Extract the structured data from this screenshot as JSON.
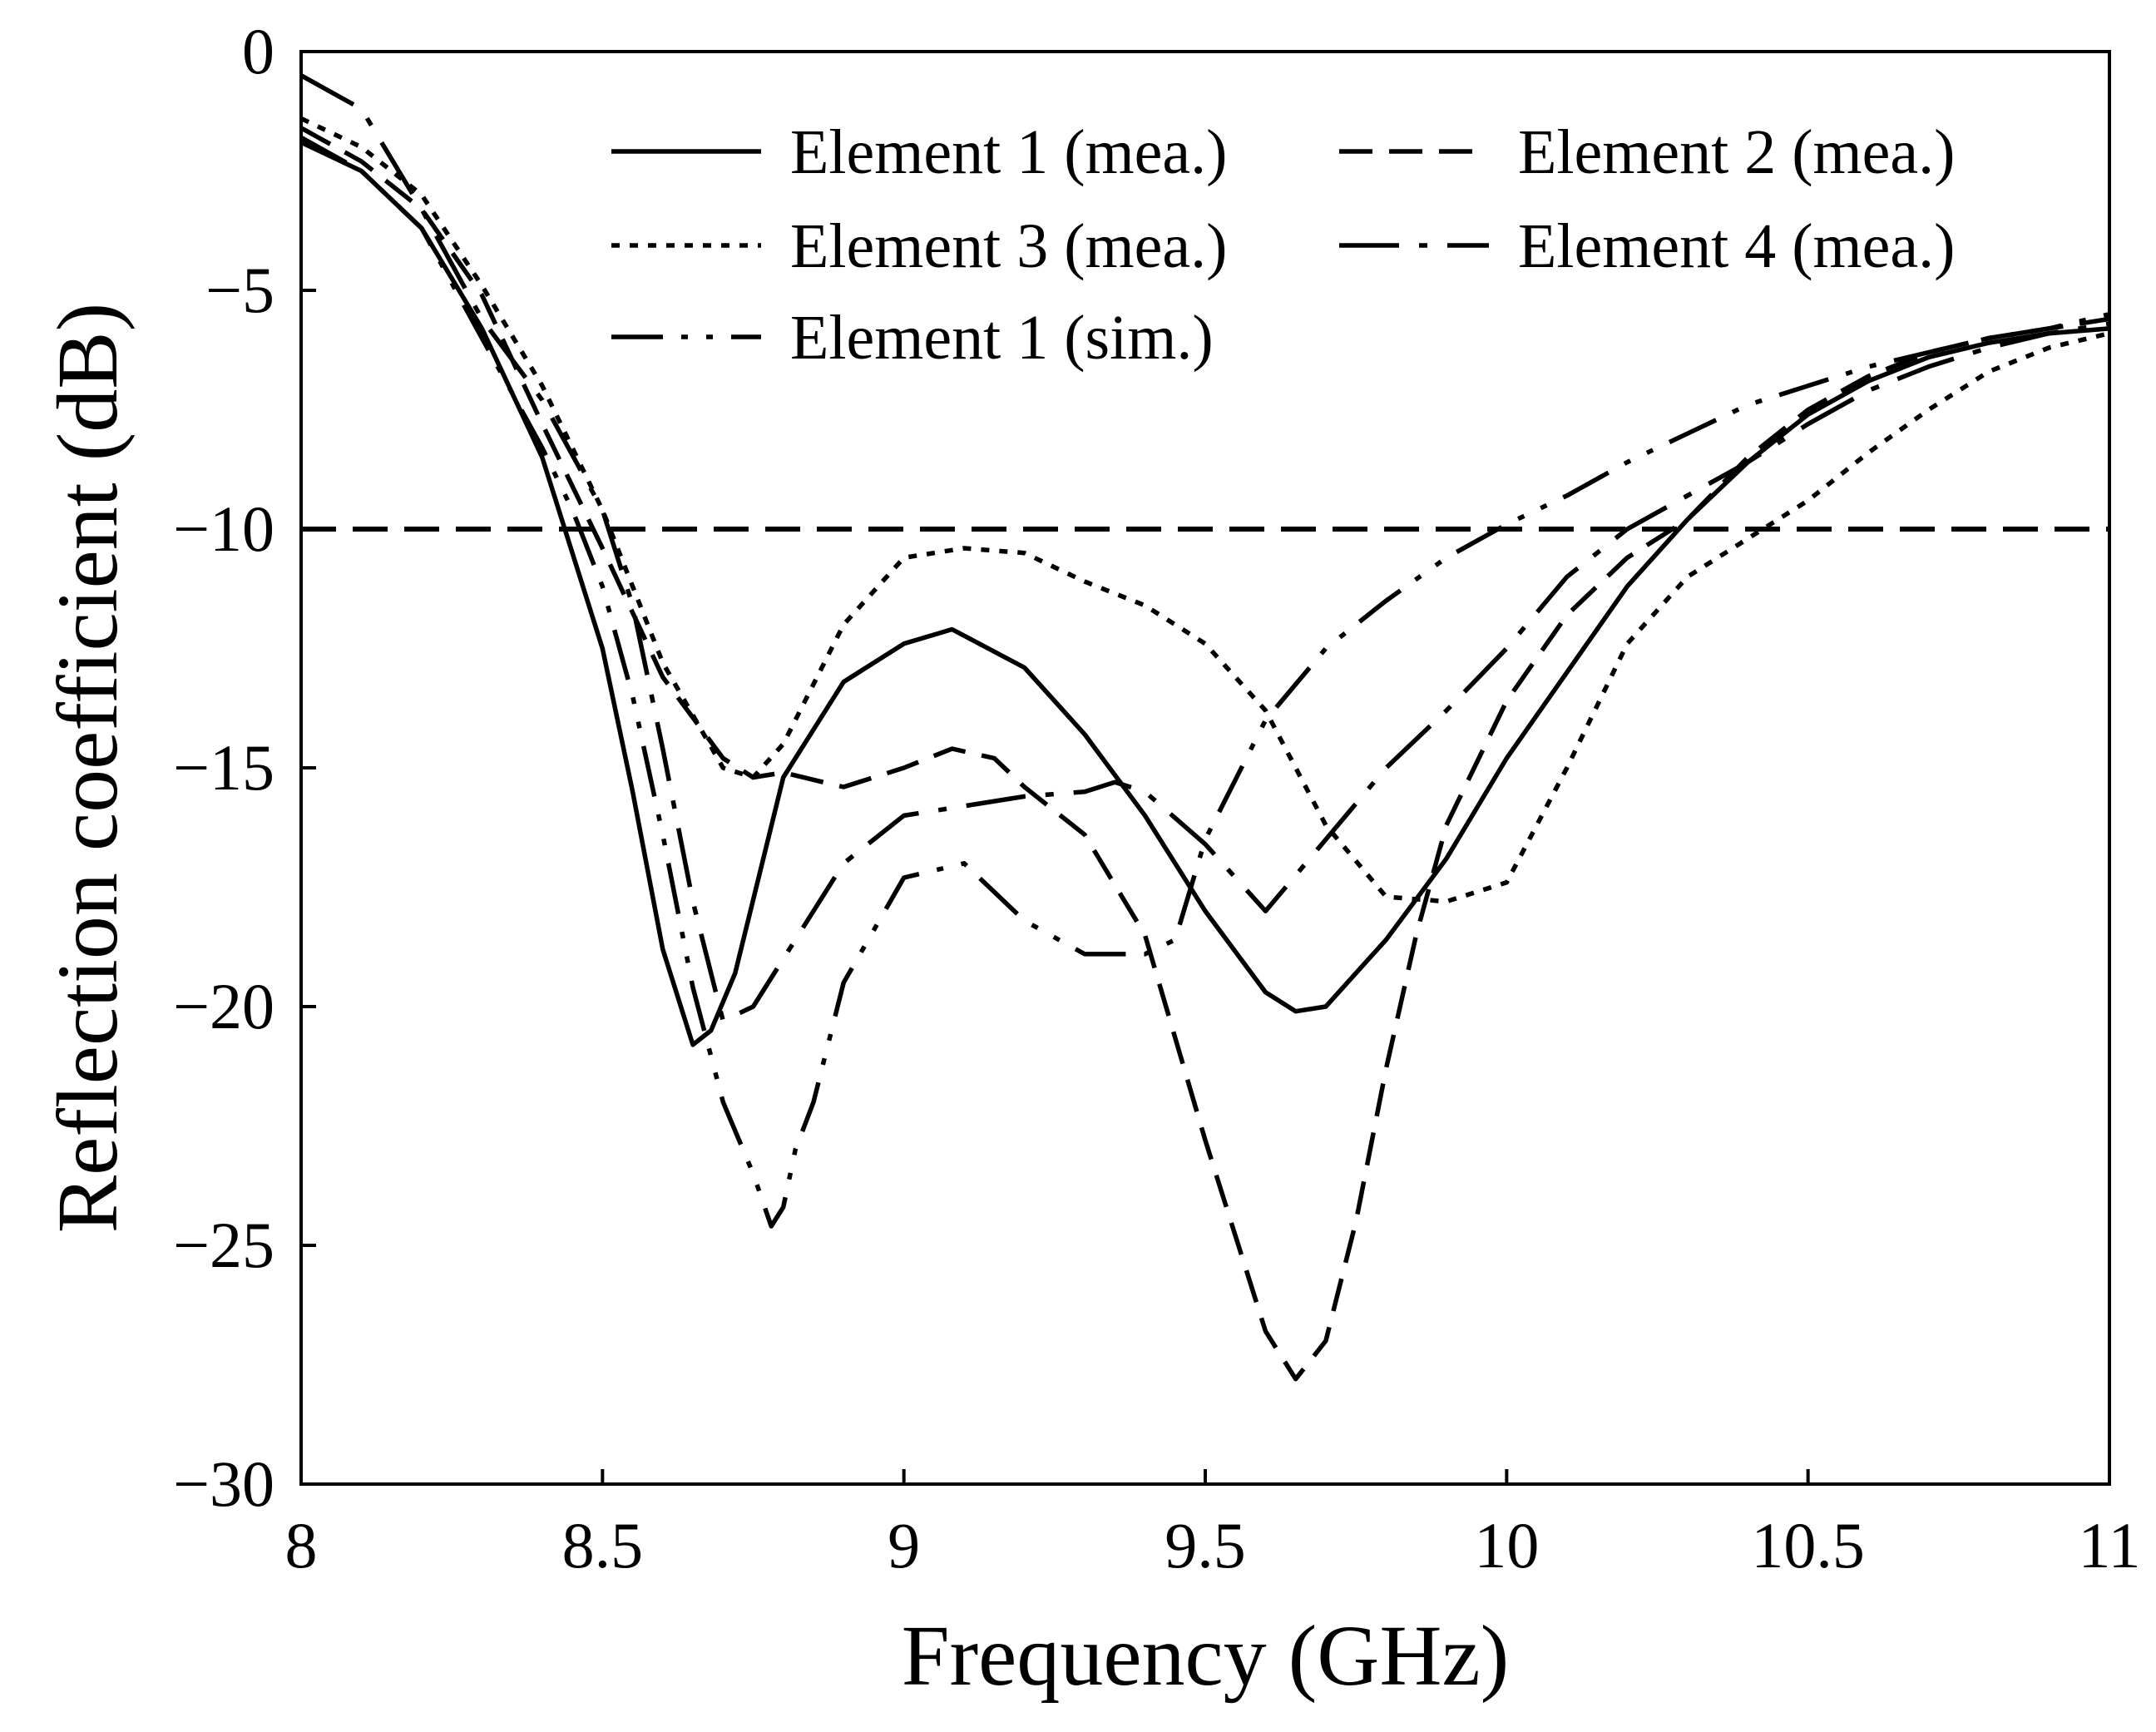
{
  "chart_data": {
    "type": "line",
    "title": "",
    "xlabel": "Frequency (GHz)",
    "ylabel": "Reflection coefficient (dB)",
    "xlim": [
      8,
      11
    ],
    "ylim": [
      -30,
      0
    ],
    "xticks": [
      8,
      8.5,
      9,
      9.5,
      10,
      10.5,
      11
    ],
    "yticks": [
      0,
      -5,
      -10,
      -15,
      -20,
      -25,
      -30
    ],
    "xtick_labels": [
      "8",
      "8.5",
      "9",
      "9.5",
      "10",
      "10.5",
      "11"
    ],
    "ytick_labels": [
      "0",
      "−5",
      "−10",
      "−15",
      "−20",
      "−25",
      "−30"
    ],
    "grid": false,
    "legend_position": "top-right",
    "reference_line": {
      "y": -10,
      "style": "dashed"
    },
    "series": [
      {
        "name": "Element 1 (mea.)",
        "style": "solid",
        "x": [
          8.0,
          8.1,
          8.2,
          8.3,
          8.4,
          8.5,
          8.55,
          8.6,
          8.65,
          8.68,
          8.72,
          8.8,
          8.9,
          9.0,
          9.08,
          9.2,
          9.3,
          9.4,
          9.5,
          9.6,
          9.65,
          9.7,
          9.8,
          9.9,
          10.0,
          10.1,
          10.2,
          10.3,
          10.4,
          10.5,
          10.6,
          10.7,
          10.8,
          10.9,
          11.0
        ],
        "y": [
          -1.9,
          -2.5,
          -3.7,
          -5.8,
          -8.5,
          -12.5,
          -15.5,
          -18.8,
          -20.8,
          -20.5,
          -19.3,
          -15.2,
          -13.2,
          -12.4,
          -12.1,
          -12.9,
          -14.3,
          -16.0,
          -18.0,
          -19.7,
          -20.1,
          -20.0,
          -18.6,
          -16.9,
          -14.8,
          -13.0,
          -11.2,
          -9.8,
          -8.6,
          -7.6,
          -6.9,
          -6.4,
          -6.1,
          -5.9,
          -5.8
        ]
      },
      {
        "name": "Element 2 (mea.)",
        "style": "dashed",
        "x": [
          8.0,
          8.1,
          8.2,
          8.3,
          8.4,
          8.5,
          8.6,
          8.7,
          8.75,
          8.8,
          8.9,
          9.0,
          9.08,
          9.15,
          9.2,
          9.3,
          9.4,
          9.5,
          9.6,
          9.65,
          9.7,
          9.75,
          9.8,
          9.85,
          9.9,
          10.0,
          10.1,
          10.2,
          10.3,
          10.4,
          10.5,
          10.6,
          10.7,
          10.8,
          10.9,
          11.0
        ],
        "y": [
          -1.6,
          -2.3,
          -3.3,
          -5.1,
          -7.8,
          -10.4,
          -13.1,
          -14.8,
          -15.2,
          -15.1,
          -15.4,
          -15.0,
          -14.6,
          -14.8,
          -15.4,
          -16.4,
          -18.5,
          -22.8,
          -26.8,
          -27.8,
          -27.0,
          -24.5,
          -21.3,
          -18.5,
          -16.2,
          -13.6,
          -11.8,
          -10.6,
          -9.8,
          -8.5,
          -7.5,
          -6.8,
          -6.3,
          -6.0,
          -5.8,
          -5.6
        ]
      },
      {
        "name": "Element 3 (mea.)",
        "style": "dotted",
        "x": [
          8.0,
          8.1,
          8.2,
          8.3,
          8.4,
          8.5,
          8.6,
          8.7,
          8.75,
          8.8,
          8.9,
          9.0,
          9.1,
          9.2,
          9.3,
          9.4,
          9.5,
          9.6,
          9.7,
          9.8,
          9.9,
          10.0,
          10.1,
          10.2,
          10.3,
          10.4,
          10.5,
          10.6,
          10.7,
          10.8,
          10.9,
          11.0
        ],
        "y": [
          -1.4,
          -2.0,
          -3.0,
          -4.9,
          -7.0,
          -9.6,
          -12.8,
          -15.0,
          -15.2,
          -14.5,
          -12.0,
          -10.6,
          -10.4,
          -10.5,
          -11.1,
          -11.6,
          -12.4,
          -13.8,
          -16.2,
          -17.7,
          -17.8,
          -17.4,
          -15.0,
          -12.4,
          -11.0,
          -10.2,
          -9.4,
          -8.4,
          -7.5,
          -6.7,
          -6.2,
          -5.9
        ]
      },
      {
        "name": "Element 4 (mea.)",
        "style": "dash-dot",
        "x": [
          8.0,
          8.1,
          8.2,
          8.3,
          8.4,
          8.5,
          8.55,
          8.6,
          8.65,
          8.7,
          8.75,
          8.8,
          8.9,
          9.0,
          9.1,
          9.2,
          9.3,
          9.35,
          9.4,
          9.5,
          9.6,
          9.7,
          9.8,
          9.9,
          10.0,
          10.1,
          10.2,
          10.3,
          10.4,
          10.5,
          10.6,
          10.7,
          10.8,
          10.9,
          11.0
        ],
        "y": [
          -0.5,
          -1.2,
          -3.3,
          -5.6,
          -7.3,
          -9.6,
          -11.6,
          -14.6,
          -17.8,
          -20.3,
          -20.0,
          -19.0,
          -17.0,
          -16.0,
          -15.8,
          -15.6,
          -15.5,
          -15.3,
          -15.5,
          -16.6,
          -18.0,
          -16.5,
          -15.0,
          -13.8,
          -12.5,
          -11.0,
          -10.0,
          -9.3,
          -8.6,
          -7.8,
          -7.1,
          -6.6,
          -6.2,
          -5.9,
          -5.7
        ]
      },
      {
        "name": "Element 1 (sim.)",
        "style": "dash-dot-dot",
        "x": [
          8.0,
          8.1,
          8.2,
          8.3,
          8.4,
          8.45,
          8.5,
          8.55,
          8.6,
          8.65,
          8.7,
          8.75,
          8.78,
          8.8,
          8.82,
          8.85,
          8.9,
          9.0,
          9.1,
          9.2,
          9.3,
          9.4,
          9.45,
          9.5,
          9.6,
          9.7,
          9.8,
          9.9,
          10.0,
          10.1,
          10.2,
          10.3,
          10.4,
          10.5,
          10.6,
          10.7,
          10.8,
          10.9,
          11.0
        ],
        "y": [
          -1.8,
          -2.5,
          -3.7,
          -6.0,
          -8.3,
          -9.6,
          -11.2,
          -13.5,
          -16.4,
          -19.6,
          -22.0,
          -23.5,
          -24.6,
          -24.2,
          -23.0,
          -22.0,
          -19.5,
          -17.3,
          -17.0,
          -18.2,
          -18.9,
          -18.9,
          -18.6,
          -16.5,
          -14.0,
          -12.5,
          -11.5,
          -10.6,
          -9.9,
          -9.3,
          -8.6,
          -8.0,
          -7.4,
          -7.0,
          -6.6,
          -6.3,
          -6.0,
          -5.8,
          -5.5
        ]
      }
    ]
  }
}
